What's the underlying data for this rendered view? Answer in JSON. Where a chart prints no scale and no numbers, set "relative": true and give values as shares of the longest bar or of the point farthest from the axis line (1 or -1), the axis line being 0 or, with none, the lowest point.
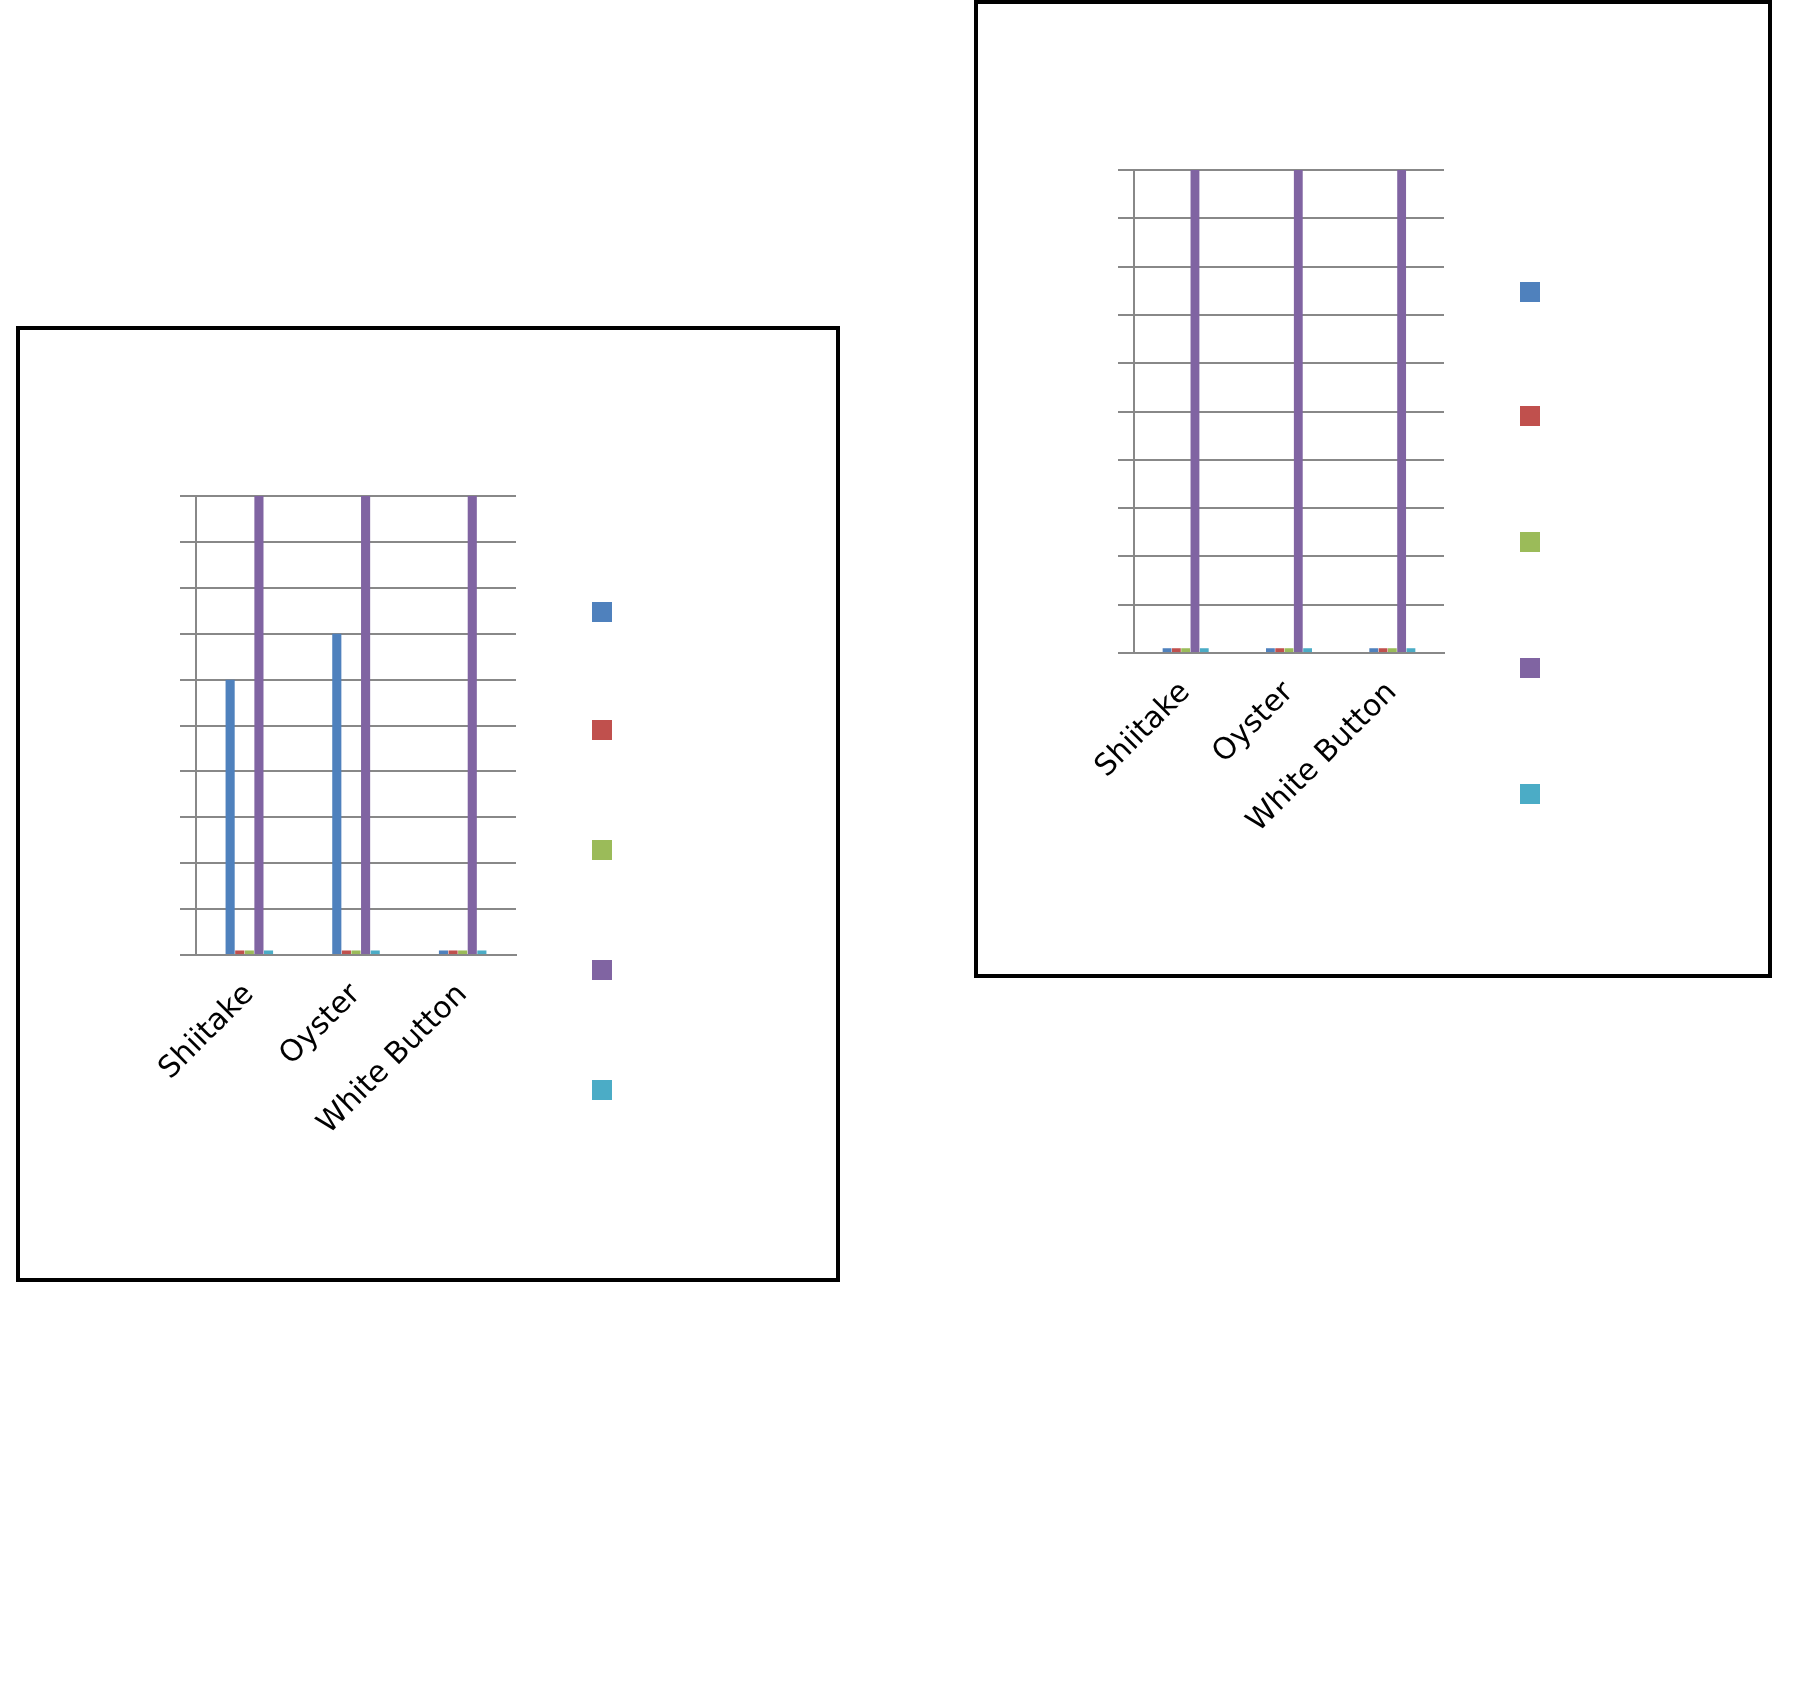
{
  "chart_data": [
    {
      "type": "bar",
      "relative": true,
      "categories": [
        "Shiitake",
        "Oyster",
        "White Button"
      ],
      "grid": "y",
      "series": [
        {
          "color": "#4f81bd",
          "values": [
            0.6,
            0.7,
            0.01
          ]
        },
        {
          "color": "#c0504d",
          "values": [
            0.01,
            0.01,
            0.01
          ]
        },
        {
          "color": "#9bbb59",
          "values": [
            0.01,
            0.01,
            0.01
          ]
        },
        {
          "color": "#8064a2",
          "values": [
            1,
            1,
            1
          ]
        },
        {
          "color": "#4bacc6",
          "values": [
            0.01,
            0.01,
            0.01
          ]
        }
      ]
    },
    {
      "type": "bar",
      "relative": true,
      "categories": [
        "Shiitake",
        "Oyster",
        "White Button"
      ],
      "grid": "y",
      "series": [
        {
          "color": "#4f81bd",
          "values": [
            0.01,
            0.01,
            0.01
          ]
        },
        {
          "color": "#c0504d",
          "values": [
            0.01,
            0.01,
            0.01
          ]
        },
        {
          "color": "#9bbb59",
          "values": [
            0.01,
            0.01,
            0.01
          ]
        },
        {
          "color": "#8064a2",
          "values": [
            1,
            1,
            1
          ]
        },
        {
          "color": "#4bacc6",
          "values": [
            0.01,
            0.01,
            0.01
          ]
        }
      ]
    }
  ]
}
